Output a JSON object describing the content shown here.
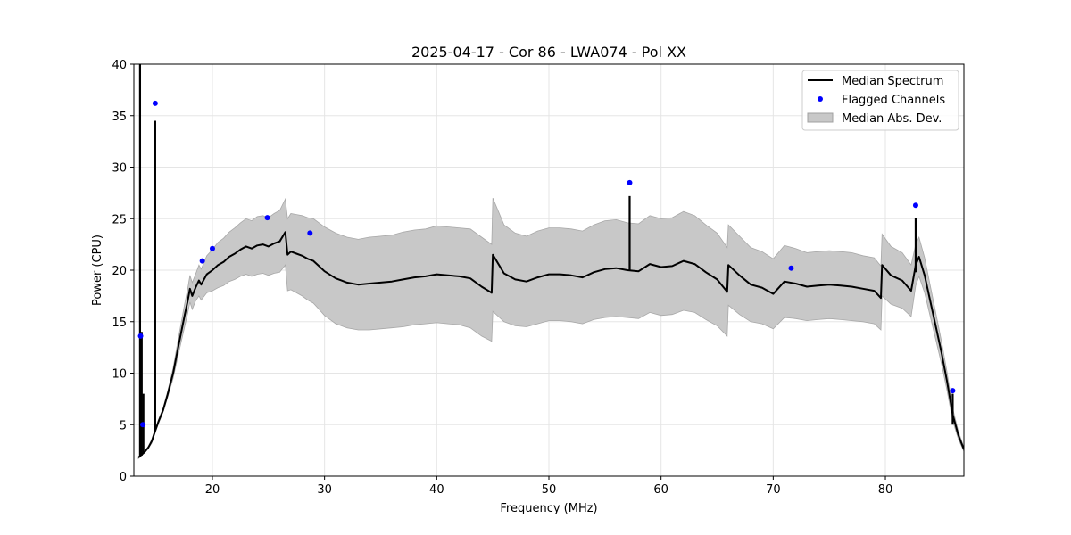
{
  "chart_data": {
    "type": "line",
    "title": "2025-04-17 - Cor 86 - LWA074 - Pol XX",
    "xlabel": "Frequency (MHz)",
    "ylabel": "Power (CPU)",
    "xlim": [
      13.0,
      87.0
    ],
    "ylim": [
      0,
      40
    ],
    "xticks": [
      20,
      30,
      40,
      50,
      60,
      70,
      80
    ],
    "yticks": [
      0,
      5,
      10,
      15,
      20,
      25,
      30,
      35,
      40
    ],
    "grid": true,
    "legend_position": "top-right",
    "legend": [
      {
        "label": "Median Spectrum",
        "kind": "line",
        "color": "#000000"
      },
      {
        "label": "Flagged Channels",
        "kind": "marker",
        "color": "#0000ff"
      },
      {
        "label": "Median Abs. Dev.",
        "kind": "patch",
        "color": "#c8c8c8"
      }
    ],
    "series": [
      {
        "name": "Median Spectrum",
        "color": "#000000",
        "x": [
          13.4,
          13.6,
          13.8,
          14.0,
          14.3,
          14.6,
          14.9,
          15.2,
          15.6,
          16.0,
          16.5,
          17.0,
          17.5,
          17.8,
          18.0,
          18.2,
          18.5,
          18.8,
          19.0,
          19.5,
          20.0,
          20.5,
          21.0,
          21.5,
          22.0,
          22.5,
          23.0,
          23.5,
          24.0,
          24.5,
          25.0,
          25.5,
          26.0,
          26.5,
          26.7,
          27.0,
          27.5,
          28.0,
          28.5,
          29.0,
          29.5,
          30.0,
          31.0,
          32.0,
          33.0,
          34.0,
          35.0,
          36.0,
          37.0,
          38.0,
          39.0,
          40.0,
          41.0,
          42.0,
          43.0,
          44.0,
          44.9,
          45.0,
          46.0,
          47.0,
          48.0,
          49.0,
          50.0,
          51.0,
          52.0,
          53.0,
          54.0,
          55.0,
          56.0,
          57.0,
          58.0,
          59.0,
          60.0,
          61.0,
          62.0,
          63.0,
          64.0,
          65.0,
          65.9,
          66.0,
          67.0,
          68.0,
          69.0,
          70.0,
          71.0,
          72.0,
          73.0,
          74.0,
          75.0,
          76.0,
          77.0,
          78.0,
          79.0,
          79.6,
          79.7,
          80.5,
          81.5,
          82.3,
          82.7,
          83.0,
          83.5,
          84.0,
          84.5,
          85.0,
          85.5,
          86.0,
          86.5,
          87.0
        ],
        "y": [
          1.8,
          2.0,
          2.2,
          2.4,
          2.8,
          3.4,
          4.4,
          5.3,
          6.4,
          7.9,
          10.0,
          12.8,
          15.5,
          17.0,
          18.2,
          17.5,
          18.3,
          19.0,
          18.6,
          19.6,
          20.0,
          20.5,
          20.8,
          21.3,
          21.6,
          22.0,
          22.3,
          22.1,
          22.4,
          22.5,
          22.3,
          22.6,
          22.8,
          23.7,
          21.5,
          21.8,
          21.6,
          21.4,
          21.1,
          20.9,
          20.4,
          19.9,
          19.2,
          18.8,
          18.6,
          18.7,
          18.8,
          18.9,
          19.1,
          19.3,
          19.4,
          19.6,
          19.5,
          19.4,
          19.2,
          18.4,
          17.8,
          21.5,
          19.7,
          19.1,
          18.9,
          19.3,
          19.6,
          19.6,
          19.5,
          19.3,
          19.8,
          20.1,
          20.2,
          20.0,
          19.9,
          20.6,
          20.3,
          20.4,
          20.9,
          20.6,
          19.8,
          19.1,
          17.9,
          20.5,
          19.5,
          18.6,
          18.3,
          17.7,
          18.9,
          18.7,
          18.4,
          18.5,
          18.6,
          18.5,
          18.4,
          18.2,
          18.0,
          17.3,
          20.5,
          19.5,
          19.0,
          18.0,
          20.5,
          21.3,
          19.5,
          17.0,
          14.5,
          12.0,
          9.2,
          6.0,
          4.0,
          2.6
        ],
        "mad_lower": [
          1.7,
          1.9,
          2.1,
          2.3,
          2.7,
          3.2,
          4.2,
          5.1,
          6.2,
          7.6,
          9.5,
          12.0,
          14.4,
          15.8,
          16.9,
          16.2,
          17.0,
          17.5,
          17.1,
          17.8,
          18.0,
          18.3,
          18.5,
          18.9,
          19.1,
          19.4,
          19.6,
          19.4,
          19.6,
          19.7,
          19.5,
          19.7,
          19.8,
          20.5,
          18.0,
          18.1,
          17.8,
          17.5,
          17.1,
          16.8,
          16.2,
          15.6,
          14.8,
          14.4,
          14.2,
          14.2,
          14.3,
          14.4,
          14.5,
          14.7,
          14.8,
          14.9,
          14.8,
          14.7,
          14.4,
          13.6,
          13.1,
          16.0,
          15.0,
          14.6,
          14.5,
          14.8,
          15.1,
          15.1,
          15.0,
          14.8,
          15.2,
          15.4,
          15.5,
          15.4,
          15.3,
          15.9,
          15.6,
          15.7,
          16.1,
          15.9,
          15.2,
          14.6,
          13.6,
          16.6,
          15.7,
          15.0,
          14.8,
          14.3,
          15.4,
          15.3,
          15.1,
          15.2,
          15.3,
          15.2,
          15.1,
          15.0,
          14.8,
          14.2,
          17.5,
          16.7,
          16.3,
          15.5,
          18.5,
          19.4,
          17.8,
          15.5,
          13.2,
          10.9,
          8.3,
          5.4,
          3.6,
          2.4
        ],
        "mad_upper": [
          1.9,
          2.1,
          2.3,
          2.5,
          2.9,
          3.6,
          4.6,
          5.5,
          6.6,
          8.2,
          10.5,
          13.6,
          16.6,
          18.2,
          19.5,
          18.8,
          19.6,
          20.5,
          20.1,
          21.4,
          22.0,
          22.7,
          23.1,
          23.7,
          24.1,
          24.6,
          25.0,
          24.8,
          25.2,
          25.3,
          25.1,
          25.5,
          25.8,
          26.9,
          25.0,
          25.5,
          25.4,
          25.3,
          25.1,
          25.0,
          24.6,
          24.2,
          23.6,
          23.2,
          23.0,
          23.2,
          23.3,
          23.4,
          23.7,
          23.9,
          24.0,
          24.3,
          24.2,
          24.1,
          24.0,
          23.2,
          22.5,
          27.0,
          24.4,
          23.6,
          23.3,
          23.8,
          24.1,
          24.1,
          24.0,
          23.8,
          24.4,
          24.8,
          24.9,
          24.6,
          24.5,
          25.3,
          25.0,
          25.1,
          25.7,
          25.3,
          24.4,
          23.6,
          22.2,
          24.4,
          23.3,
          22.2,
          21.8,
          21.1,
          22.4,
          22.1,
          21.7,
          21.8,
          21.9,
          21.8,
          21.7,
          21.4,
          21.2,
          20.4,
          23.5,
          22.3,
          21.7,
          20.5,
          22.5,
          23.2,
          21.2,
          18.5,
          15.8,
          13.1,
          10.1,
          6.6,
          4.4,
          2.8
        ]
      },
      {
        "name": "Flagged Channels",
        "color": "#0000ff",
        "x": [
          13.6,
          13.8,
          14.9,
          19.1,
          20.0,
          24.9,
          28.7,
          57.2,
          71.6,
          82.7,
          86.0
        ],
        "y": [
          13.6,
          5.0,
          36.2,
          20.9,
          22.1,
          25.1,
          23.6,
          28.5,
          20.2,
          26.3,
          8.3
        ],
        "spike_base": [
          4.0,
          3.0,
          4.5,
          19.0,
          19.6,
          22.3,
          21.3,
          20.0,
          18.6,
          19.8,
          5.0
        ]
      }
    ],
    "spikes": [
      {
        "x": 13.55,
        "base": 2.0,
        "top": 40.0
      },
      {
        "x": 13.7,
        "base": 2.0,
        "top": 14.0
      },
      {
        "x": 13.85,
        "base": 2.2,
        "top": 8.0
      },
      {
        "x": 14.9,
        "base": 4.4,
        "top": 34.5
      },
      {
        "x": 57.2,
        "base": 20.0,
        "top": 27.2
      },
      {
        "x": 82.7,
        "base": 19.8,
        "top": 25.1
      },
      {
        "x": 86.0,
        "base": 5.0,
        "top": 8.0
      }
    ]
  }
}
